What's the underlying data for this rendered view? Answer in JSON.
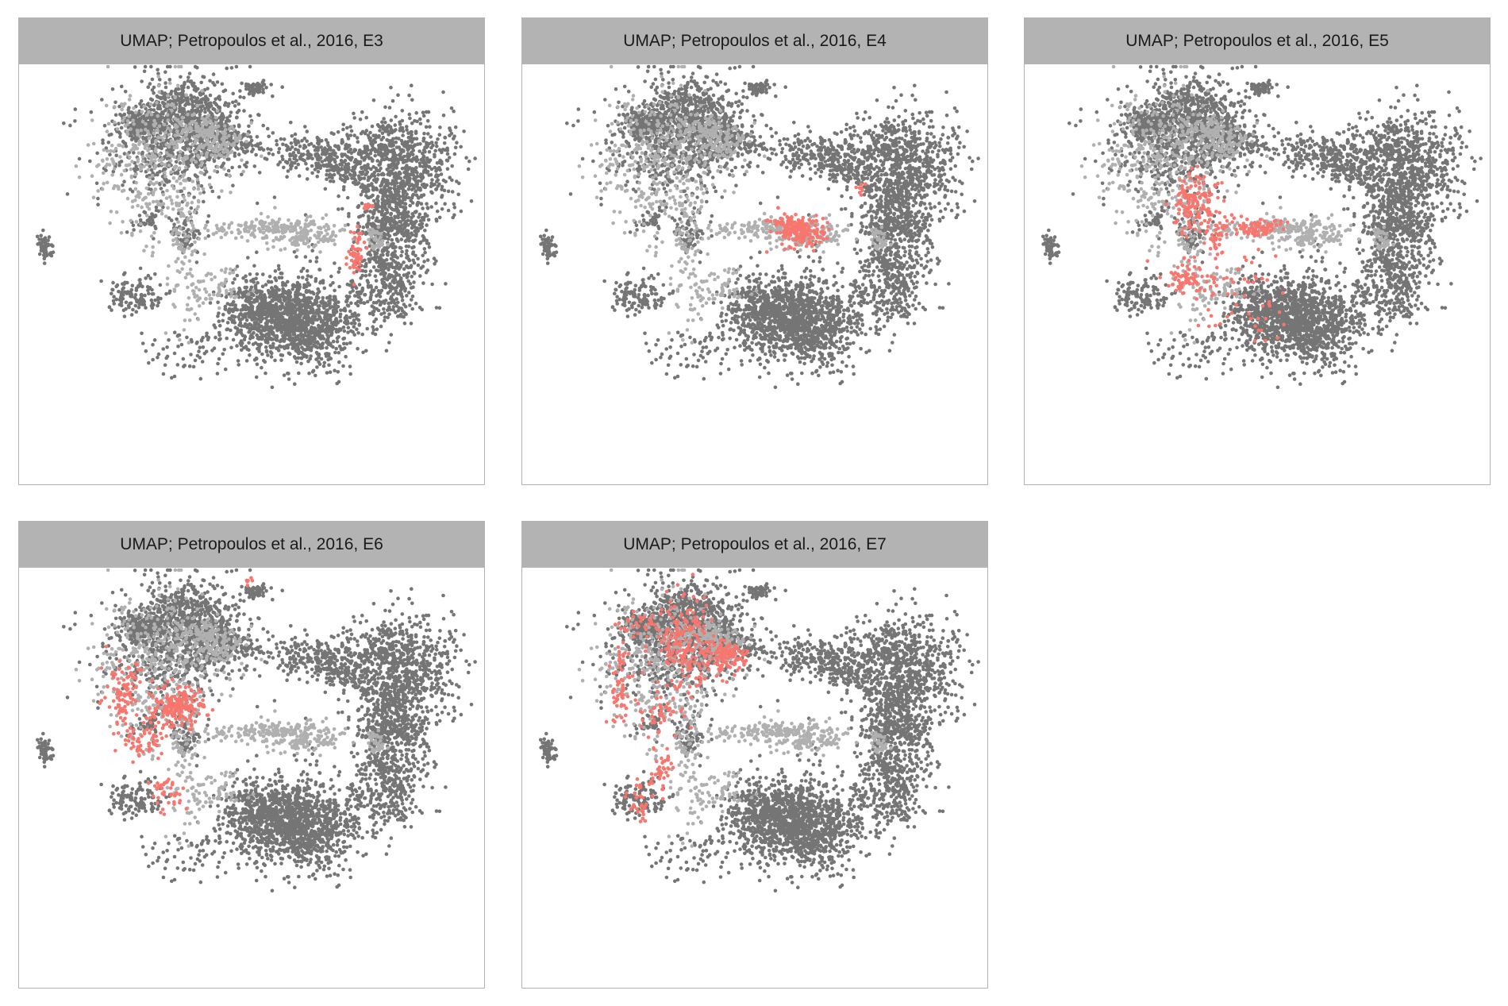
{
  "figure": {
    "colors": {
      "background_cells": "#757575",
      "other_study_cells": "#b0b0b0",
      "highlight_cells": "#f8766d",
      "strip_background": "#b3b3b3",
      "panel_border": "#b3b3b3"
    }
  },
  "chart_data": [
    {
      "type": "scatter",
      "title": "UMAP; Petropoulos et al., 2016, E3",
      "highlight": "E3",
      "xlabel": "",
      "ylabel": "",
      "grid": false,
      "legend": "none"
    },
    {
      "type": "scatter",
      "title": "UMAP; Petropoulos et al., 2016, E4",
      "highlight": "E4",
      "xlabel": "",
      "ylabel": "",
      "grid": false,
      "legend": "none"
    },
    {
      "type": "scatter",
      "title": "UMAP; Petropoulos et al., 2016, E5",
      "highlight": "E5",
      "xlabel": "",
      "ylabel": "",
      "grid": false,
      "legend": "none"
    },
    {
      "type": "scatter",
      "title": "UMAP; Petropoulos et al., 2016, E6",
      "highlight": "E6",
      "xlabel": "",
      "ylabel": "",
      "grid": false,
      "legend": "none"
    },
    {
      "type": "scatter",
      "title": "UMAP; Petropoulos et al., 2016, E7",
      "highlight": "E7",
      "xlabel": "",
      "ylabel": "",
      "grid": false,
      "legend": "none"
    }
  ]
}
